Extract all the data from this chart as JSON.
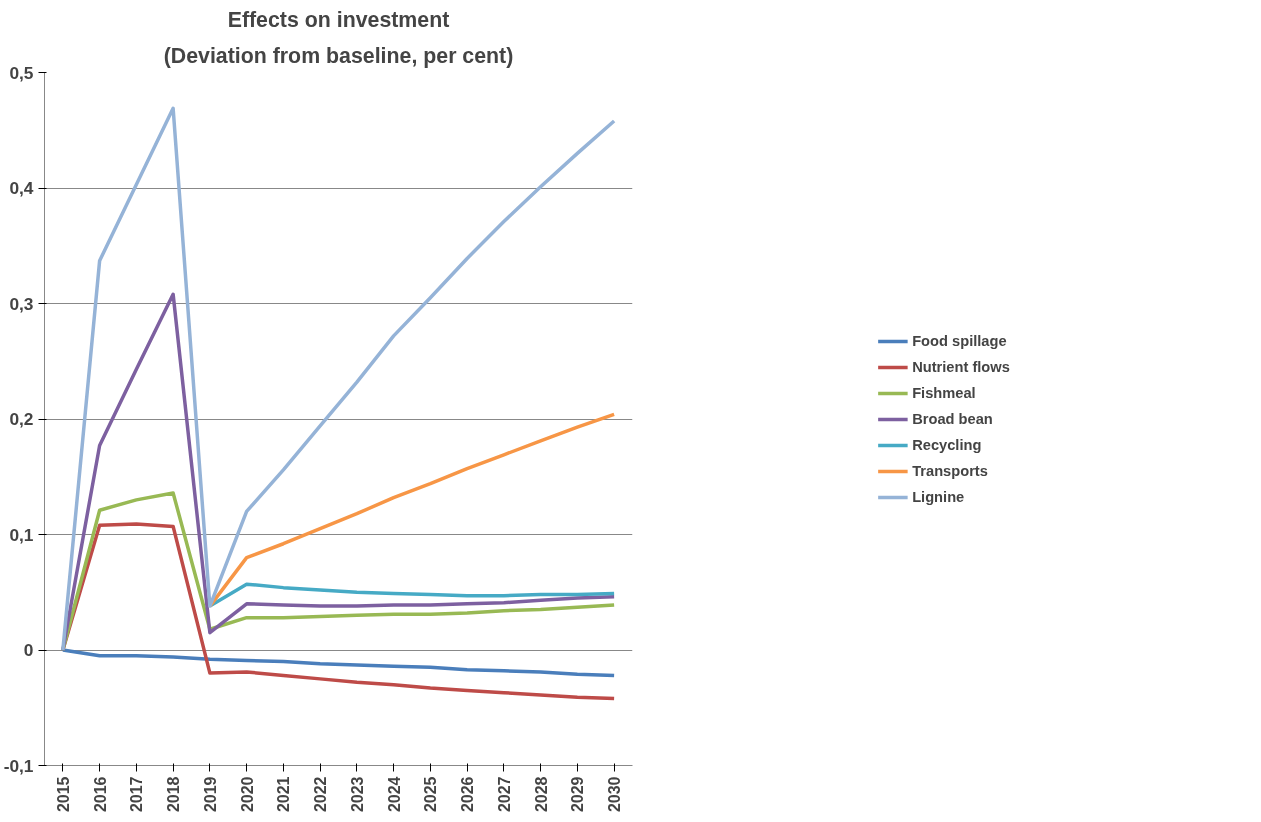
{
  "chart_data": {
    "type": "line",
    "title": "Effects on investment",
    "subtitle": "(Deviation from baseline, per cent)",
    "categories": [
      "2015",
      "2016",
      "2017",
      "2018",
      "2019",
      "2020",
      "2021",
      "2022",
      "2023",
      "2024",
      "2025",
      "2026",
      "2027",
      "2028",
      "2029",
      "2030"
    ],
    "series": [
      {
        "name": "Food spillage",
        "color": "#4a7ebb",
        "values": [
          0,
          -0.005,
          -0.005,
          -0.006,
          -0.008,
          -0.009,
          -0.01,
          -0.012,
          -0.013,
          -0.014,
          -0.015,
          -0.017,
          -0.018,
          -0.019,
          -0.021,
          -0.022
        ]
      },
      {
        "name": "Nutrient flows",
        "color": "#be4b48",
        "values": [
          0,
          0.108,
          0.109,
          0.107,
          -0.02,
          -0.019,
          -0.022,
          -0.025,
          -0.028,
          -0.03,
          -0.033,
          -0.035,
          -0.037,
          -0.039,
          -0.041,
          -0.042
        ]
      },
      {
        "name": "Fishmeal",
        "color": "#98b954",
        "values": [
          0,
          0.121,
          0.13,
          0.136,
          0.018,
          0.028,
          0.028,
          0.029,
          0.03,
          0.031,
          0.031,
          0.032,
          0.034,
          0.035,
          0.037,
          0.039
        ]
      },
      {
        "name": "Broad bean",
        "color": "#7d60a0",
        "values": [
          0,
          0.177,
          0.243,
          0.308,
          0.015,
          0.04,
          0.039,
          0.038,
          0.038,
          0.039,
          0.039,
          0.04,
          0.041,
          0.043,
          0.045,
          0.046
        ]
      },
      {
        "name": "Recycling",
        "color": "#46aac5",
        "values": [
          null,
          null,
          null,
          null,
          0.038,
          0.057,
          0.054,
          0.052,
          0.05,
          0.049,
          0.048,
          0.047,
          0.047,
          0.048,
          0.048,
          0.049
        ]
      },
      {
        "name": "Transports",
        "color": "#f79646",
        "values": [
          null,
          null,
          null,
          null,
          0.038,
          0.08,
          0.092,
          0.105,
          0.118,
          0.132,
          0.144,
          0.157,
          0.169,
          0.181,
          0.193,
          0.204
        ]
      },
      {
        "name": "Lignine",
        "color": "#95b3d7",
        "values": [
          0,
          0.337,
          0.403,
          0.469,
          0.038,
          0.12,
          0.156,
          0.194,
          0.232,
          0.272,
          0.305,
          0.339,
          0.371,
          0.401,
          0.43,
          0.458
        ]
      }
    ],
    "ylim": [
      -0.1,
      0.5
    ],
    "yticks": [
      {
        "value": -0.1,
        "label": "-0,1"
      },
      {
        "value": 0,
        "label": "0"
      },
      {
        "value": 0.1,
        "label": "0,1"
      },
      {
        "value": 0.2,
        "label": "0,2"
      },
      {
        "value": 0.3,
        "label": "0,3"
      },
      {
        "value": 0.4,
        "label": "0,4"
      },
      {
        "value": 0.5,
        "label": "0,5"
      }
    ],
    "grid": "y",
    "legend": "right",
    "marker": "none",
    "line_style": "solid"
  }
}
